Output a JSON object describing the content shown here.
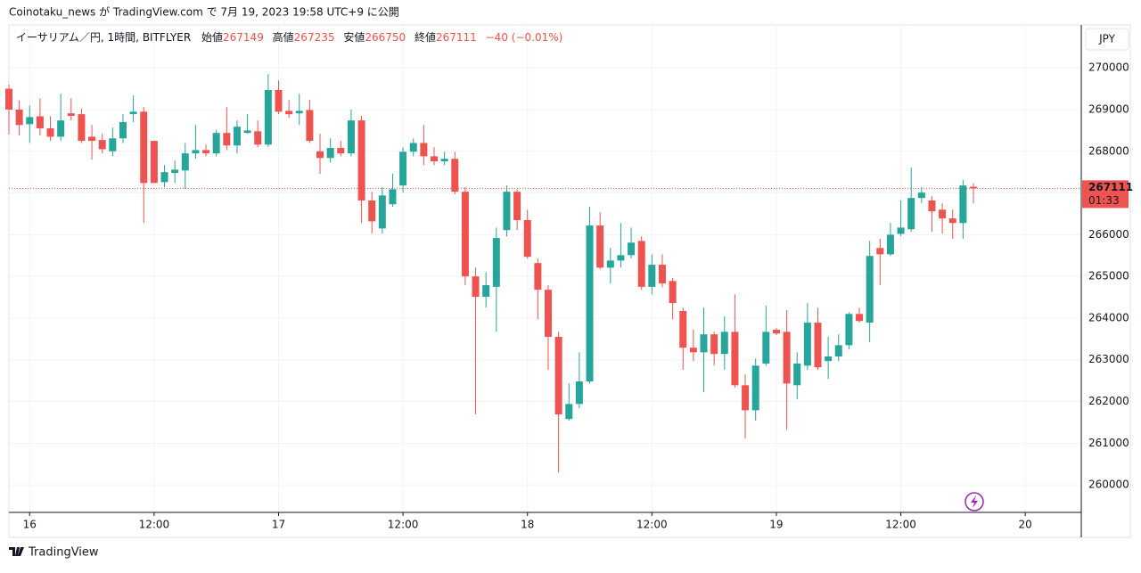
{
  "header": "Coinotaku_news が TradingView.com で 7月 19, 2023 19:58 UTC+9 に公開",
  "footer": "TradingView",
  "chart_data": {
    "type": "candlestick",
    "title": "イーサリアム／円, 1時間, BITFLYER",
    "legend": {
      "open": "始値",
      "high": "高値",
      "low": "安値",
      "close": "終値",
      "change": "−40 (−0.01%)"
    },
    "currency": "JPY",
    "countdown": "01:33",
    "up_color": "#26a69a",
    "down_color": "#ef5350",
    "x": [
      -2,
      -1,
      0,
      1,
      2,
      3,
      4,
      5,
      6,
      7,
      8,
      9,
      10,
      11,
      12,
      13,
      14,
      15,
      16,
      17,
      18,
      19,
      20,
      21,
      22,
      23,
      24,
      25,
      26,
      27,
      28,
      29,
      30,
      31,
      32,
      33,
      34,
      35,
      36,
      37,
      38,
      39,
      40,
      41,
      42,
      43,
      44,
      45,
      46,
      47,
      48,
      49,
      50,
      51,
      52,
      53,
      54,
      55,
      56,
      57,
      58,
      59,
      60,
      61,
      62,
      63,
      64,
      65,
      66,
      67,
      68,
      69,
      70,
      71,
      72,
      73,
      74,
      75,
      76,
      77,
      78,
      79,
      80,
      81,
      82,
      83,
      84,
      85,
      86,
      87,
      88,
      89,
      90,
      91
    ],
    "open": [
      269500,
      269000,
      268650,
      268840,
      268550,
      268350,
      268910,
      268890,
      268350,
      268270,
      268000,
      268310,
      268890,
      268950,
      268250,
      267260,
      267480,
      267540,
      267950,
      268030,
      267950,
      268440,
      268140,
      268440,
      268480,
      268160,
      269470,
      268970,
      268910,
      268990,
      268000,
      267840,
      268080,
      267950,
      268740,
      266820,
      266150,
      266730,
      267180,
      267990,
      268200,
      267880,
      267760,
      267820,
      267030,
      265000,
      264510,
      264750,
      266110,
      267030,
      266350,
      265320,
      264680,
      263550,
      261580,
      261940,
      262480,
      266220,
      265210,
      265380,
      265510,
      265850,
      264750,
      265280,
      264890,
      264170,
      263290,
      263180,
      263610,
      263140,
      263670,
      262390,
      261790,
      262910,
      263720,
      263670,
      262390,
      262860,
      263890,
      262970,
      263080,
      263350,
      264100,
      263890,
      265680,
      265530,
      266020,
      266130,
      266880,
      266820,
      266600,
      266390,
      266280,
      267149
    ],
    "high": [
      269600,
      269220,
      269100,
      269270,
      268840,
      269380,
      269270,
      269020,
      268630,
      268420,
      268570,
      268890,
      269340,
      269060,
      268250,
      267670,
      267780,
      268200,
      268630,
      268160,
      268520,
      269060,
      268740,
      268890,
      268740,
      269850,
      269700,
      269230,
      269380,
      269230,
      268420,
      268310,
      268250,
      269000,
      268850,
      267030,
      267140,
      267460,
      268100,
      268310,
      268630,
      268100,
      267990,
      267990,
      267140,
      265210,
      265100,
      266170,
      267180,
      267090,
      266600,
      265430,
      264790,
      263670,
      262430,
      263180,
      266670,
      266540,
      265680,
      266280,
      266170,
      265960,
      265530,
      265530,
      264960,
      264250,
      263720,
      264250,
      263670,
      264040,
      264570,
      262650,
      263030,
      264300,
      263760,
      264190,
      263180,
      264360,
      264250,
      263550,
      263610,
      264140,
      264250,
      265850,
      265900,
      266280,
      266820,
      267610,
      267140,
      266920,
      266750,
      266600,
      267310,
      267235
    ],
    "low": [
      268400,
      268380,
      268200,
      268380,
      268250,
      268250,
      268740,
      268200,
      267800,
      267950,
      267880,
      268200,
      268700,
      266280,
      267240,
      267140,
      267240,
      267090,
      267820,
      267880,
      267880,
      268030,
      267950,
      268420,
      268100,
      268100,
      268890,
      268800,
      268630,
      268200,
      267460,
      267730,
      267880,
      267880,
      266280,
      266030,
      266030,
      266670,
      267010,
      267880,
      267670,
      267670,
      267670,
      266970,
      264790,
      261690,
      264250,
      263670,
      265960,
      266110,
      265430,
      263970,
      262760,
      260300,
      261540,
      261840,
      262430,
      265170,
      264830,
      265210,
      265430,
      264680,
      264570,
      264740,
      263970,
      262760,
      262970,
      262220,
      262860,
      262760,
      262330,
      261110,
      261540,
      262860,
      263590,
      261320,
      262050,
      262760,
      262760,
      262540,
      262970,
      263250,
      263890,
      263420,
      264790,
      265490,
      265960,
      266070,
      266750,
      266070,
      266030,
      265900,
      265900,
      266750
    ],
    "close": [
      269000,
      268630,
      268820,
      268550,
      268350,
      268740,
      268850,
      268250,
      268250,
      268050,
      268310,
      268700,
      268950,
      267240,
      267240,
      267500,
      267560,
      267950,
      268030,
      267950,
      268440,
      268140,
      268590,
      268500,
      268160,
      269470,
      268950,
      268890,
      268970,
      268250,
      267840,
      268080,
      267950,
      268740,
      266820,
      266320,
      266940,
      267090,
      267990,
      268200,
      267880,
      267760,
      267820,
      267030,
      265000,
      264510,
      264790,
      265920,
      267030,
      266350,
      265470,
      264680,
      263550,
      261690,
      261940,
      262480,
      266220,
      265210,
      265380,
      265510,
      265810,
      264750,
      265280,
      264830,
      264360,
      263290,
      263180,
      263610,
      263140,
      263670,
      262390,
      261790,
      262860,
      263670,
      263630,
      262430,
      262910,
      263890,
      262820,
      263080,
      263350,
      264100,
      263930,
      265490,
      265530,
      266000,
      266170,
      266880,
      267010,
      266560,
      266390,
      266280,
      267180,
      267111
    ],
    "xlim": [
      -2,
      101.4
    ],
    "xticks": [
      {
        "value": 0,
        "label": "16"
      },
      {
        "value": 12,
        "label": "12:00"
      },
      {
        "value": 24,
        "label": "17"
      },
      {
        "value": 36,
        "label": "12:00"
      },
      {
        "value": 48,
        "label": "18"
      },
      {
        "value": 60,
        "label": "12:00"
      },
      {
        "value": 72,
        "label": "19"
      },
      {
        "value": 84,
        "label": "12:00"
      },
      {
        "value": 96,
        "label": "20"
      }
    ],
    "ylim": [
      259340,
      271030
    ],
    "yticks": [
      260000,
      261000,
      262000,
      263000,
      264000,
      265000,
      266000,
      267000,
      268000,
      269000,
      270000
    ],
    "grid": true
  }
}
